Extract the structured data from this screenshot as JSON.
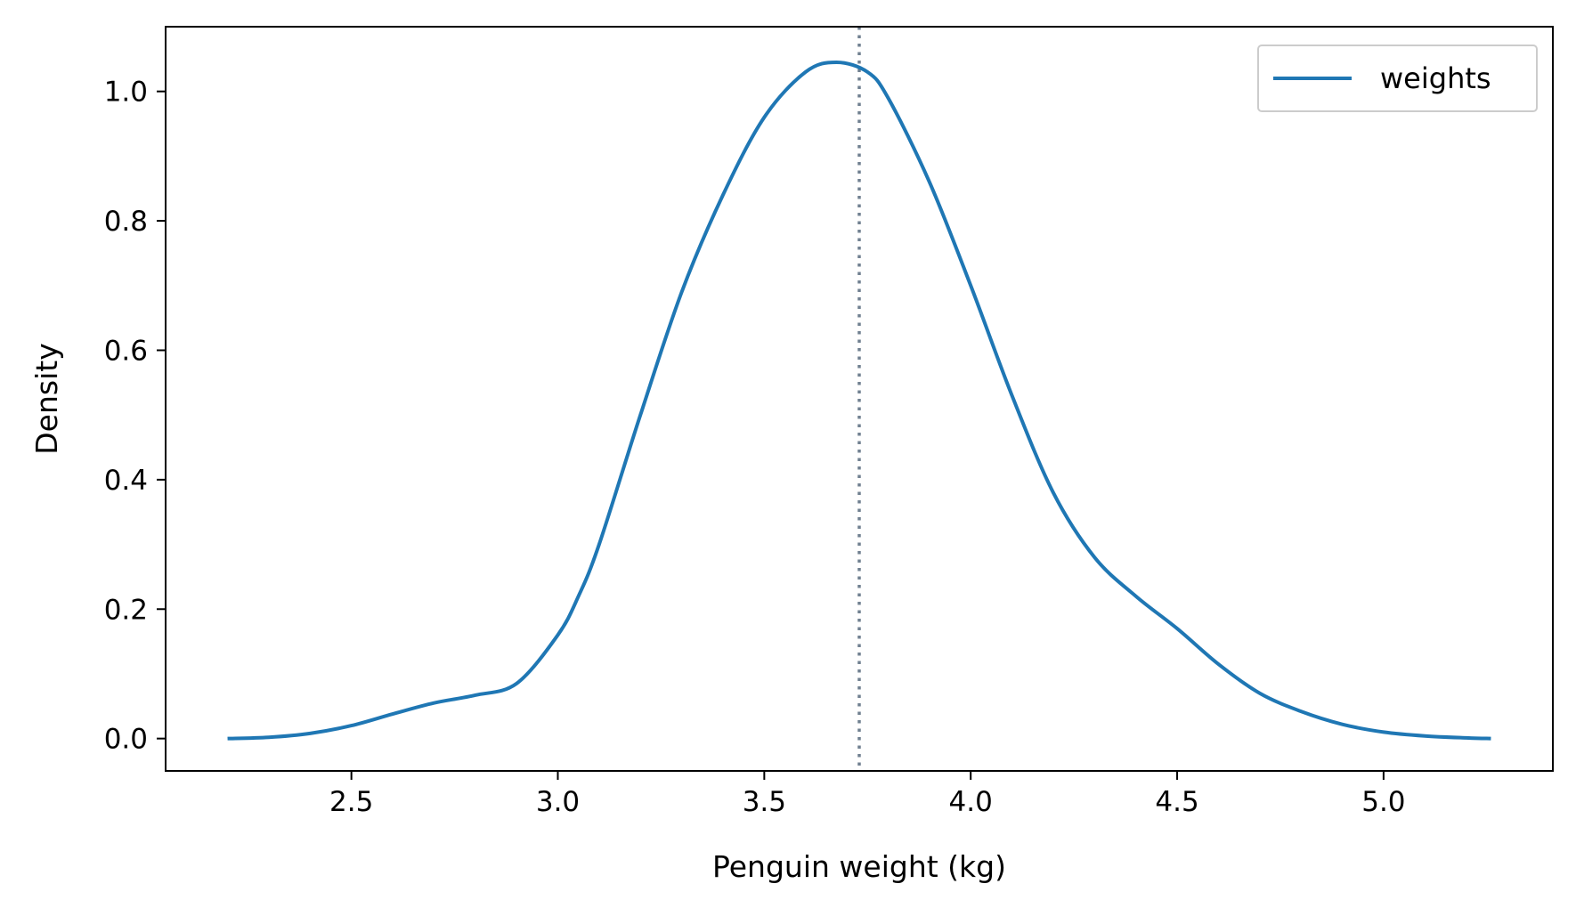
{
  "chart_data": {
    "type": "line",
    "title": "",
    "xlabel": "Penguin weight (kg)",
    "ylabel": "Density",
    "xlim": [
      2.05,
      5.41
    ],
    "ylim": [
      -0.05,
      1.1
    ],
    "x_ticks": [
      2.5,
      3.0,
      3.5,
      4.0,
      4.5,
      5.0
    ],
    "x_tick_labels": [
      "2.5",
      "3.0",
      "3.5",
      "4.0",
      "4.5",
      "5.0"
    ],
    "y_ticks": [
      0.0,
      0.2,
      0.4,
      0.6,
      0.8,
      1.0
    ],
    "y_tick_labels": [
      "0.0",
      "0.2",
      "0.4",
      "0.6",
      "0.8",
      "1.0"
    ],
    "grid": false,
    "legend": {
      "position": "top-right"
    },
    "series": [
      {
        "name": "weights",
        "color": "#1f77b4",
        "x": [
          2.2,
          2.3,
          2.4,
          2.5,
          2.6,
          2.7,
          2.8,
          2.9,
          3.0,
          3.05,
          3.1,
          3.2,
          3.3,
          3.4,
          3.5,
          3.6,
          3.675,
          3.75,
          3.8,
          3.9,
          4.0,
          4.1,
          4.2,
          4.3,
          4.4,
          4.5,
          4.6,
          4.7,
          4.8,
          4.9,
          5.0,
          5.1,
          5.2,
          5.26
        ],
        "y": [
          0.0,
          0.002,
          0.008,
          0.02,
          0.038,
          0.055,
          0.067,
          0.085,
          0.16,
          0.22,
          0.3,
          0.5,
          0.69,
          0.84,
          0.96,
          1.03,
          1.045,
          1.03,
          0.99,
          0.86,
          0.7,
          0.53,
          0.38,
          0.28,
          0.22,
          0.17,
          0.115,
          0.07,
          0.042,
          0.022,
          0.01,
          0.004,
          0.001,
          0.0
        ]
      }
    ],
    "reference_lines": [
      {
        "axis": "x",
        "value": 3.73,
        "style": "dotted",
        "color": "#708090"
      }
    ]
  }
}
